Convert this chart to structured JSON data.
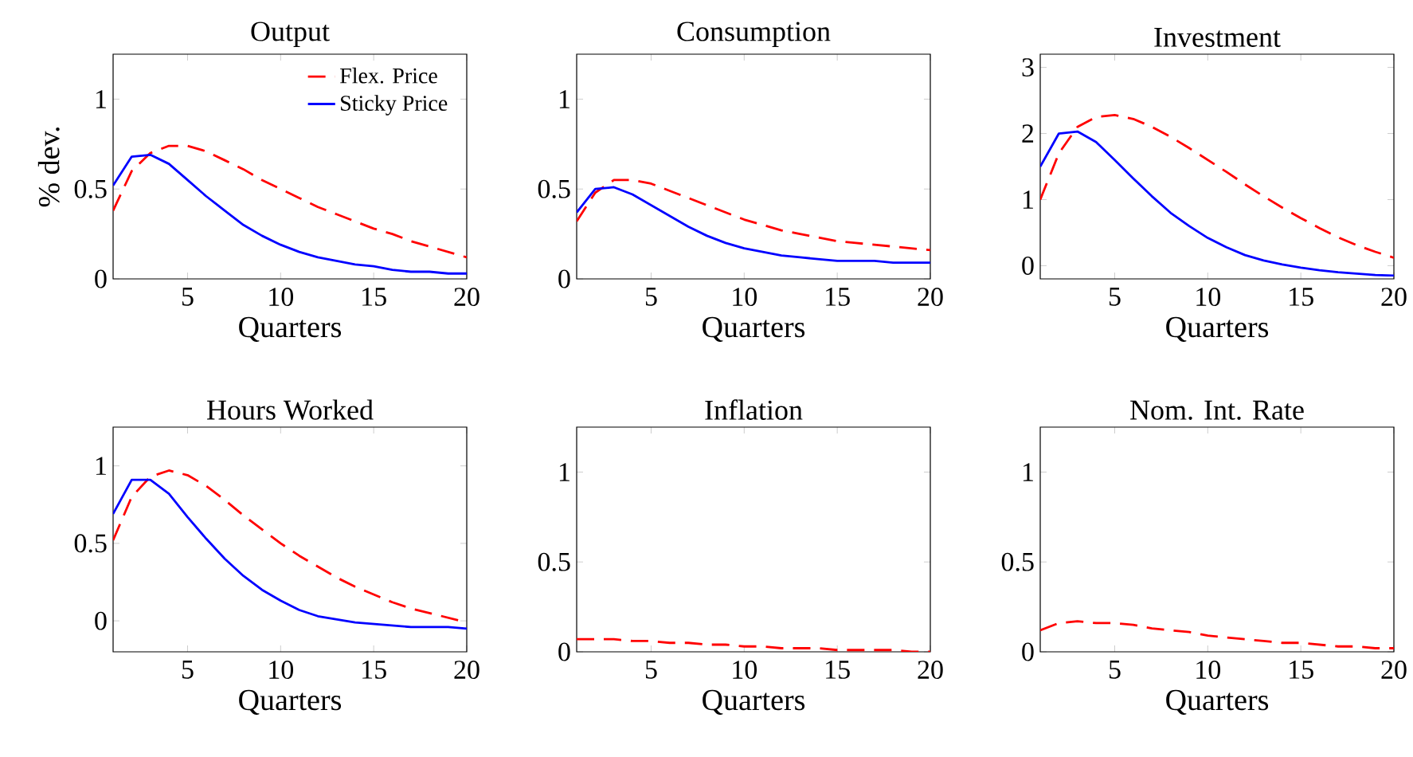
{
  "chart_data": [
    {
      "type": "line",
      "title": "Output",
      "xlabel": "Quarters",
      "ylabel": "% dev.",
      "x": [
        1,
        2,
        3,
        4,
        5,
        6,
        7,
        8,
        9,
        10,
        11,
        12,
        13,
        14,
        15,
        16,
        17,
        18,
        19,
        20
      ],
      "xlim": [
        1,
        20
      ],
      "xticks": [
        5,
        10,
        15,
        20
      ],
      "ylim": [
        0,
        1.25
      ],
      "yticks": [
        0,
        0.5,
        1
      ],
      "legend": "top right",
      "series": [
        {
          "name": "Flex. Price",
          "color": "#ff0000",
          "line_style": "dashed",
          "values": [
            0.38,
            0.6,
            0.7,
            0.74,
            0.74,
            0.71,
            0.66,
            0.61,
            0.55,
            0.5,
            0.45,
            0.4,
            0.36,
            0.32,
            0.28,
            0.25,
            0.21,
            0.18,
            0.15,
            0.12
          ]
        },
        {
          "name": "Sticky Price",
          "color": "#0000ff",
          "line_style": "solid",
          "values": [
            0.52,
            0.68,
            0.69,
            0.64,
            0.55,
            0.46,
            0.38,
            0.3,
            0.24,
            0.19,
            0.15,
            0.12,
            0.1,
            0.08,
            0.07,
            0.05,
            0.04,
            0.04,
            0.03,
            0.03
          ]
        }
      ]
    },
    {
      "type": "line",
      "title": "Consumption",
      "xlabel": "Quarters",
      "x": [
        1,
        2,
        3,
        4,
        5,
        6,
        7,
        8,
        9,
        10,
        11,
        12,
        13,
        14,
        15,
        16,
        17,
        18,
        19,
        20
      ],
      "xlim": [
        1,
        20
      ],
      "xticks": [
        5,
        10,
        15,
        20
      ],
      "ylim": [
        0,
        1.25
      ],
      "yticks": [
        0,
        0.5,
        1
      ],
      "series": [
        {
          "color": "#ff0000",
          "line_style": "dashed",
          "values": [
            0.32,
            0.48,
            0.55,
            0.55,
            0.53,
            0.49,
            0.45,
            0.41,
            0.37,
            0.33,
            0.3,
            0.27,
            0.25,
            0.23,
            0.21,
            0.2,
            0.19,
            0.18,
            0.17,
            0.16
          ]
        },
        {
          "color": "#0000ff",
          "line_style": "solid",
          "values": [
            0.37,
            0.5,
            0.51,
            0.47,
            0.41,
            0.35,
            0.29,
            0.24,
            0.2,
            0.17,
            0.15,
            0.13,
            0.12,
            0.11,
            0.1,
            0.1,
            0.1,
            0.09,
            0.09,
            0.09
          ]
        }
      ]
    },
    {
      "type": "line",
      "title": "Investment",
      "xlabel": "Quarters",
      "x": [
        1,
        2,
        3,
        4,
        5,
        6,
        7,
        8,
        9,
        10,
        11,
        12,
        13,
        14,
        15,
        16,
        17,
        18,
        19,
        20
      ],
      "xlim": [
        1,
        20
      ],
      "xticks": [
        5,
        10,
        15,
        20
      ],
      "ylim": [
        -0.2,
        3.2
      ],
      "yticks": [
        0,
        1,
        2,
        3
      ],
      "series": [
        {
          "color": "#ff0000",
          "line_style": "dashed",
          "values": [
            1.0,
            1.7,
            2.1,
            2.25,
            2.28,
            2.22,
            2.1,
            1.95,
            1.78,
            1.6,
            1.42,
            1.23,
            1.05,
            0.88,
            0.72,
            0.57,
            0.43,
            0.31,
            0.21,
            0.12
          ]
        },
        {
          "color": "#0000ff",
          "line_style": "solid",
          "values": [
            1.5,
            2.0,
            2.03,
            1.87,
            1.6,
            1.32,
            1.05,
            0.8,
            0.6,
            0.42,
            0.28,
            0.16,
            0.08,
            0.02,
            -0.03,
            -0.07,
            -0.1,
            -0.12,
            -0.14,
            -0.15
          ]
        }
      ]
    },
    {
      "type": "line",
      "title": "Hours Worked",
      "xlabel": "Quarters",
      "x": [
        1,
        2,
        3,
        4,
        5,
        6,
        7,
        8,
        9,
        10,
        11,
        12,
        13,
        14,
        15,
        16,
        17,
        18,
        19,
        20
      ],
      "xlim": [
        1,
        20
      ],
      "xticks": [
        5,
        10,
        15,
        20
      ],
      "ylim": [
        -0.2,
        1.25
      ],
      "yticks": [
        0,
        0.5,
        1
      ],
      "series": [
        {
          "color": "#ff0000",
          "line_style": "dashed",
          "values": [
            0.52,
            0.8,
            0.93,
            0.97,
            0.94,
            0.87,
            0.78,
            0.68,
            0.59,
            0.5,
            0.42,
            0.35,
            0.28,
            0.22,
            0.17,
            0.12,
            0.08,
            0.05,
            0.02,
            -0.01
          ]
        },
        {
          "color": "#0000ff",
          "line_style": "solid",
          "values": [
            0.69,
            0.91,
            0.91,
            0.82,
            0.67,
            0.53,
            0.4,
            0.29,
            0.2,
            0.13,
            0.07,
            0.03,
            0.01,
            -0.01,
            -0.02,
            -0.03,
            -0.04,
            -0.04,
            -0.04,
            -0.05
          ]
        }
      ]
    },
    {
      "type": "line",
      "title": "Inflation",
      "xlabel": "Quarters",
      "x": [
        1,
        2,
        3,
        4,
        5,
        6,
        7,
        8,
        9,
        10,
        11,
        12,
        13,
        14,
        15,
        16,
        17,
        18,
        19,
        20
      ],
      "xlim": [
        1,
        20
      ],
      "xticks": [
        5,
        10,
        15,
        20
      ],
      "ylim": [
        0,
        1.25
      ],
      "yticks": [
        0,
        0.5,
        1
      ],
      "series": [
        {
          "color": "#ff0000",
          "line_style": "dashed",
          "values": [
            0.07,
            0.07,
            0.07,
            0.06,
            0.06,
            0.05,
            0.05,
            0.04,
            0.04,
            0.03,
            0.03,
            0.02,
            0.02,
            0.02,
            0.01,
            0.01,
            0.01,
            0.01,
            0,
            0
          ]
        }
      ]
    },
    {
      "type": "line",
      "title": "Nom. Int. Rate",
      "xlabel": "Quarters",
      "x": [
        1,
        2,
        3,
        4,
        5,
        6,
        7,
        8,
        9,
        10,
        11,
        12,
        13,
        14,
        15,
        16,
        17,
        18,
        19,
        20
      ],
      "xlim": [
        1,
        20
      ],
      "xticks": [
        5,
        10,
        15,
        20
      ],
      "ylim": [
        0,
        1.25
      ],
      "yticks": [
        0,
        0.5,
        1
      ],
      "series": [
        {
          "color": "#ff0000",
          "line_style": "dashed",
          "values": [
            0.12,
            0.16,
            0.17,
            0.16,
            0.16,
            0.15,
            0.13,
            0.12,
            0.11,
            0.09,
            0.08,
            0.07,
            0.06,
            0.05,
            0.05,
            0.04,
            0.03,
            0.03,
            0.02,
            0.02
          ]
        }
      ]
    }
  ]
}
